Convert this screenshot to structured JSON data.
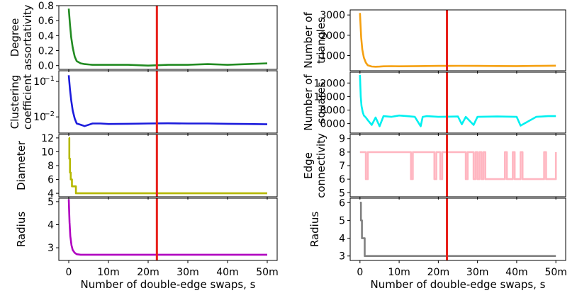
{
  "chart_data": [
    {
      "id": "degree-assortativity",
      "type": "line",
      "ylabel": [
        "Degree",
        "assortativity"
      ],
      "yticks": [
        "0.0",
        "0.2",
        "0.4",
        "0.6",
        "0.8"
      ],
      "ytick_values": [
        0.0,
        0.2,
        0.4,
        0.6,
        0.8
      ],
      "ylim": [
        -0.05,
        0.8
      ],
      "yscale": "linear",
      "color": "#228b22",
      "series": [
        {
          "name": "Degree assortativity",
          "x": [
            0,
            0.3,
            0.6,
            1,
            1.5,
            2,
            3,
            4,
            6,
            8,
            10,
            15,
            20,
            25,
            30,
            35,
            40,
            45,
            50
          ],
          "y": [
            0.76,
            0.55,
            0.38,
            0.24,
            0.12,
            0.06,
            0.03,
            0.02,
            0.01,
            0.01,
            0.01,
            0.01,
            0.0,
            0.01,
            0.01,
            0.02,
            0.01,
            0.02,
            0.03
          ]
        }
      ],
      "vline_x": 22.2,
      "vline_color": "#e8201a",
      "show_xticklabels": false
    },
    {
      "id": "clustering-coefficient",
      "type": "line",
      "ylabel": [
        "Clustering",
        "coefficient"
      ],
      "yticks": [
        "10^-1",
        "10^-2"
      ],
      "yticks_base": [
        "10",
        "10"
      ],
      "yticks_exp": [
        "−1",
        "−2"
      ],
      "ytick_values": [
        0.1,
        0.01
      ],
      "ylim": [
        0.0035,
        0.2
      ],
      "yscale": "log",
      "color": "#1c1cdc",
      "series": [
        {
          "name": "Clustering coefficient",
          "x": [
            0,
            0.3,
            0.6,
            1,
            1.5,
            2,
            3,
            4,
            5,
            6,
            8,
            10,
            15,
            20,
            25,
            30,
            35,
            40,
            45,
            50
          ],
          "y": [
            0.15,
            0.06,
            0.03,
            0.015,
            0.009,
            0.0065,
            0.006,
            0.0055,
            0.006,
            0.0065,
            0.0065,
            0.0063,
            0.0064,
            0.0065,
            0.0066,
            0.0065,
            0.0065,
            0.0064,
            0.0063,
            0.0062
          ]
        }
      ],
      "vline_x": 22.2,
      "vline_color": "#e8201a",
      "show_xticklabels": false
    },
    {
      "id": "diameter",
      "type": "step",
      "ylabel": [
        "Diameter"
      ],
      "yticks": [
        "4",
        "6",
        "8",
        "10",
        "12"
      ],
      "ytick_values": [
        4,
        6,
        8,
        10,
        12
      ],
      "ylim": [
        3.5,
        12.5
      ],
      "yscale": "linear",
      "color": "#b5b800",
      "series": [
        {
          "name": "Diameter",
          "x": [
            0,
            0.15,
            0.3,
            0.5,
            0.8,
            1.2,
            1.8,
            50
          ],
          "y": [
            12,
            9,
            7,
            6,
            5,
            5,
            4,
            4
          ]
        }
      ],
      "vline_x": 22.2,
      "vline_color": "#e8201a",
      "show_xticklabels": false
    },
    {
      "id": "radius-left",
      "type": "line",
      "ylabel": [
        "Radius"
      ],
      "yticks": [
        "3",
        "4",
        "5"
      ],
      "ytick_values": [
        3,
        4,
        5
      ],
      "ylim": [
        2.45,
        5.15
      ],
      "yscale": "linear",
      "color": "#b000c0",
      "series": [
        {
          "name": "Radius",
          "x": [
            0,
            0.2,
            0.4,
            0.7,
            1,
            1.5,
            2,
            3,
            4,
            6,
            10,
            20,
            30,
            40,
            50
          ],
          "y": [
            5.1,
            4.1,
            3.5,
            3.1,
            2.9,
            2.78,
            2.72,
            2.7,
            2.7,
            2.7,
            2.7,
            2.7,
            2.7,
            2.7,
            2.7
          ]
        }
      ],
      "vline_x": 22.2,
      "vline_color": "#e8201a",
      "show_xticklabels": true
    },
    {
      "id": "number-of-triangles",
      "type": "line",
      "ylabel": [
        "Number of",
        "triangles"
      ],
      "yticks": [
        "1000",
        "2000",
        "3000"
      ],
      "ytick_values": [
        1000,
        2000,
        3000
      ],
      "ylim": [
        250,
        3250
      ],
      "yscale": "linear",
      "color": "#f5a010",
      "series": [
        {
          "name": "Number of triangles",
          "x": [
            0,
            0.3,
            0.6,
            1,
            1.5,
            2,
            3,
            4,
            5,
            6,
            8,
            10,
            15,
            20,
            25,
            30,
            35,
            40,
            45,
            50
          ],
          "y": [
            3100,
            1900,
            1300,
            900,
            650,
            520,
            460,
            450,
            455,
            470,
            475,
            470,
            480,
            490,
            495,
            490,
            485,
            480,
            490,
            500
          ]
        }
      ],
      "vline_x": 22.2,
      "vline_color": "#e8201a",
      "show_xticklabels": false
    },
    {
      "id": "number-of-squares",
      "type": "line",
      "ylabel": [
        "Number of",
        "squares"
      ],
      "yticks": [
        "6000",
        "8000",
        "10000",
        "12000"
      ],
      "ytick_values": [
        6000,
        8000,
        10000,
        12000
      ],
      "ylim": [
        4600,
        13600
      ],
      "yscale": "linear",
      "color": "#00f0f0",
      "series": [
        {
          "name": "Number of squares",
          "x": [
            0,
            0.2,
            0.4,
            0.7,
            1,
            1.5,
            2,
            3,
            4,
            5,
            6,
            8,
            10,
            12,
            14,
            15.5,
            16,
            17,
            20,
            25,
            26,
            27,
            29,
            30,
            35,
            40,
            41,
            45,
            48,
            50
          ],
          "y": [
            13200,
            10000,
            8600,
            7700,
            7200,
            6900,
            6500,
            5800,
            6900,
            5600,
            7100,
            7000,
            7200,
            7100,
            7000,
            5600,
            7000,
            7100,
            7000,
            7050,
            5900,
            7000,
            5800,
            7000,
            7050,
            7000,
            5700,
            7000,
            7100,
            7100
          ]
        }
      ],
      "vline_x": 22.2,
      "vline_color": "#e8201a",
      "show_xticklabels": false
    },
    {
      "id": "edge-connectivity",
      "type": "step",
      "ylabel": [
        "Edge",
        "connectivity"
      ],
      "yticks": [
        "5",
        "6",
        "7",
        "8",
        "9"
      ],
      "ytick_values": [
        5,
        6,
        7,
        8,
        9
      ],
      "ylim": [
        4.7,
        9.3
      ],
      "yscale": "linear",
      "color": "#ffb6c1",
      "series": [
        {
          "name": "Edge connectivity",
          "x": [
            0,
            1.5,
            2,
            13,
            13.5,
            19,
            19.5,
            20.5,
            21,
            27,
            27.5,
            29,
            29.5,
            30,
            30.5,
            31,
            31.5,
            32,
            37,
            37.5,
            39,
            39.5,
            41,
            41.5,
            47,
            47.5,
            50
          ],
          "y": [
            8,
            6,
            8,
            6,
            8,
            6,
            8,
            6,
            8,
            6,
            8,
            6,
            8,
            6,
            8,
            6,
            8,
            6,
            8,
            6,
            8,
            6,
            8,
            6,
            8,
            6,
            8
          ]
        }
      ],
      "vline_x": 22.2,
      "vline_color": "#e8201a",
      "show_xticklabels": false
    },
    {
      "id": "radius-right",
      "type": "step",
      "ylabel": [
        "Radius"
      ],
      "yticks": [
        "3",
        "4",
        "5",
        "6"
      ],
      "ytick_values": [
        3,
        4,
        5,
        6
      ],
      "ylim": [
        2.75,
        6.25
      ],
      "yscale": "linear",
      "color": "#808080",
      "series": [
        {
          "name": "Radius",
          "x": [
            0,
            0.25,
            0.5,
            1.2,
            50
          ],
          "y": [
            6,
            5,
            4,
            3,
            3
          ]
        }
      ],
      "vline_x": 22.2,
      "vline_color": "#e8201a",
      "show_xticklabels": true
    }
  ],
  "x_axis": {
    "xlim": [
      -2.5,
      52.5
    ],
    "ticks": [
      0,
      10,
      20,
      30,
      40,
      50
    ],
    "tick_labels": [
      "0",
      "10m",
      "20m",
      "30m",
      "40m",
      "50m"
    ],
    "xlabel": "Number of double-edge swaps, s"
  }
}
